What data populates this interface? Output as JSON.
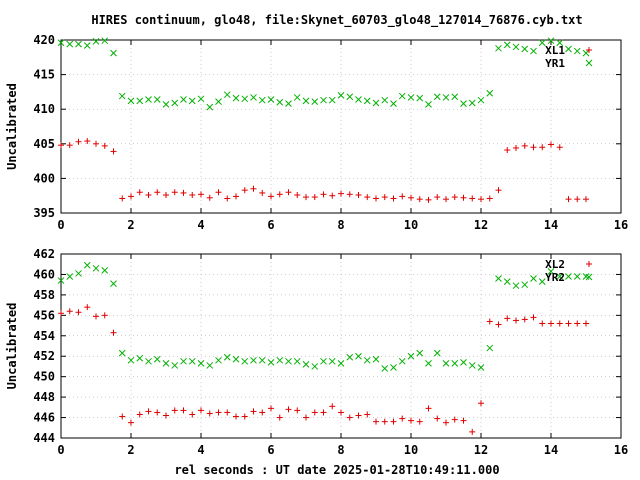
{
  "title": "HIRES continuum, glo48, file:Skynet_60703_glo48_127014_76876.cyb.txt",
  "xlabel": "rel seconds : UT date 2025-01-28T10:49:11.000",
  "colors": {
    "red": "#e00000",
    "green": "#00b000",
    "axis": "#000000",
    "grid": "#a0a0a0"
  },
  "chart_data": [
    {
      "type": "scatter",
      "ylabel": "Uncalibrated",
      "xlim": [
        0,
        16
      ],
      "ylim": [
        395,
        420
      ],
      "xticks": [
        0,
        2,
        4,
        6,
        8,
        10,
        12,
        14,
        16
      ],
      "yticks": [
        395,
        400,
        405,
        410,
        415,
        420
      ],
      "grid": true,
      "legend_position": "top-right",
      "series": [
        {
          "name": "XL1",
          "marker": "plus",
          "color": "#e00000",
          "x": [
            0.0,
            0.25,
            0.5,
            0.75,
            1.0,
            1.25,
            1.5,
            1.75,
            2.0,
            2.25,
            2.5,
            2.75,
            3.0,
            3.25,
            3.5,
            3.75,
            4.0,
            4.25,
            4.5,
            4.75,
            5.0,
            5.25,
            5.5,
            5.75,
            6.0,
            6.25,
            6.5,
            6.75,
            7.0,
            7.25,
            7.5,
            7.75,
            8.0,
            8.25,
            8.5,
            8.75,
            9.0,
            9.25,
            9.5,
            9.75,
            10.0,
            10.25,
            10.5,
            10.75,
            11.0,
            11.25,
            11.5,
            11.75,
            12.0,
            12.25,
            12.5,
            12.75,
            13.0,
            13.25,
            13.5,
            13.75,
            14.0,
            14.25,
            14.5,
            14.75,
            15.0
          ],
          "y": [
            404.8,
            404.8,
            405.3,
            405.4,
            405.0,
            404.7,
            403.9,
            397.1,
            397.4,
            398.0,
            397.6,
            398.0,
            397.6,
            398.0,
            397.9,
            397.6,
            397.7,
            397.2,
            398.0,
            397.1,
            397.4,
            398.3,
            398.5,
            397.9,
            397.4,
            397.7,
            398.0,
            397.6,
            397.3,
            397.3,
            397.7,
            397.5,
            397.8,
            397.7,
            397.6,
            397.3,
            397.1,
            397.3,
            397.1,
            397.4,
            397.2,
            397.0,
            396.9,
            397.3,
            397.0,
            397.3,
            397.2,
            397.1,
            397.0,
            397.1,
            398.3,
            404.1,
            404.4,
            404.7,
            404.5,
            404.5,
            404.9,
            404.5,
            397.0,
            397.0,
            397.0
          ]
        },
        {
          "name": "YR1",
          "marker": "cross",
          "color": "#00b000",
          "x": [
            0.0,
            0.25,
            0.5,
            0.75,
            1.0,
            1.25,
            1.5,
            1.75,
            2.0,
            2.25,
            2.5,
            2.75,
            3.0,
            3.25,
            3.5,
            3.75,
            4.0,
            4.25,
            4.5,
            4.75,
            5.0,
            5.25,
            5.5,
            5.75,
            6.0,
            6.25,
            6.5,
            6.75,
            7.0,
            7.25,
            7.5,
            7.75,
            8.0,
            8.25,
            8.5,
            8.75,
            9.0,
            9.25,
            9.5,
            9.75,
            10.0,
            10.25,
            10.5,
            10.75,
            11.0,
            11.25,
            11.5,
            11.75,
            12.0,
            12.25,
            12.5,
            12.75,
            13.0,
            13.25,
            13.5,
            13.75,
            14.0,
            14.25,
            14.5,
            14.75,
            15.0
          ],
          "y": [
            419.6,
            419.4,
            419.4,
            419.2,
            419.8,
            419.9,
            418.1,
            411.9,
            411.2,
            411.2,
            411.4,
            411.4,
            410.7,
            410.9,
            411.4,
            411.2,
            411.5,
            410.3,
            411.1,
            412.1,
            411.6,
            411.5,
            411.7,
            411.3,
            411.4,
            411.0,
            410.8,
            411.7,
            411.2,
            411.1,
            411.3,
            411.3,
            412.0,
            411.8,
            411.4,
            411.2,
            410.9,
            411.3,
            410.8,
            411.9,
            411.7,
            411.6,
            410.7,
            411.8,
            411.7,
            411.8,
            410.8,
            410.9,
            411.3,
            412.3,
            418.8,
            419.3,
            419.0,
            418.7,
            418.4,
            419.6,
            419.9,
            419.6,
            418.7,
            418.4,
            418.1
          ]
        }
      ]
    },
    {
      "type": "scatter",
      "ylabel": "Uncalibrated",
      "xlim": [
        0,
        16
      ],
      "ylim": [
        444,
        462
      ],
      "xticks": [
        0,
        2,
        4,
        6,
        8,
        10,
        12,
        14,
        16
      ],
      "yticks": [
        444,
        446,
        448,
        450,
        452,
        454,
        456,
        458,
        460,
        462
      ],
      "grid": true,
      "legend_position": "top-right",
      "series": [
        {
          "name": "XL2",
          "marker": "plus",
          "color": "#e00000",
          "x": [
            0.0,
            0.25,
            0.5,
            0.75,
            1.0,
            1.25,
            1.5,
            1.75,
            2.0,
            2.25,
            2.5,
            2.75,
            3.0,
            3.25,
            3.5,
            3.75,
            4.0,
            4.25,
            4.5,
            4.75,
            5.0,
            5.25,
            5.5,
            5.75,
            6.0,
            6.25,
            6.5,
            6.75,
            7.0,
            7.25,
            7.5,
            7.75,
            8.0,
            8.25,
            8.5,
            8.75,
            9.0,
            9.25,
            9.5,
            9.75,
            10.0,
            10.25,
            10.5,
            10.75,
            11.0,
            11.25,
            11.5,
            11.75,
            12.0,
            12.25,
            12.5,
            12.75,
            13.0,
            13.25,
            13.5,
            13.75,
            14.0,
            14.25,
            14.5,
            14.75,
            15.0
          ],
          "y": [
            456.2,
            456.4,
            456.3,
            456.8,
            455.9,
            456.0,
            454.3,
            446.1,
            445.5,
            446.3,
            446.6,
            446.5,
            446.2,
            446.7,
            446.7,
            446.3,
            446.7,
            446.4,
            446.5,
            446.5,
            446.1,
            446.1,
            446.6,
            446.5,
            446.9,
            446.0,
            446.8,
            446.7,
            446.0,
            446.5,
            446.5,
            447.1,
            446.5,
            446.0,
            446.2,
            446.3,
            445.6,
            445.6,
            445.6,
            445.9,
            445.7,
            445.6,
            446.9,
            445.9,
            445.5,
            445.8,
            445.7,
            444.6,
            447.4,
            455.4,
            455.1,
            455.7,
            455.5,
            455.6,
            455.8,
            455.2,
            455.2,
            455.2,
            455.2,
            455.2,
            455.2
          ]
        },
        {
          "name": "YR2",
          "marker": "cross",
          "color": "#00b000",
          "x": [
            0.0,
            0.25,
            0.5,
            0.75,
            1.0,
            1.25,
            1.5,
            1.75,
            2.0,
            2.25,
            2.5,
            2.75,
            3.0,
            3.25,
            3.5,
            3.75,
            4.0,
            4.25,
            4.5,
            4.75,
            5.0,
            5.25,
            5.5,
            5.75,
            6.0,
            6.25,
            6.5,
            6.75,
            7.0,
            7.25,
            7.5,
            7.75,
            8.0,
            8.25,
            8.5,
            8.75,
            9.0,
            9.25,
            9.5,
            9.75,
            10.0,
            10.25,
            10.5,
            10.75,
            11.0,
            11.25,
            11.5,
            11.75,
            12.0,
            12.25,
            12.5,
            12.75,
            13.0,
            13.25,
            13.5,
            13.75,
            14.0,
            14.25,
            14.5,
            14.75,
            15.0
          ],
          "y": [
            459.4,
            459.8,
            460.1,
            460.9,
            460.6,
            460.4,
            459.1,
            452.3,
            451.6,
            451.8,
            451.5,
            451.7,
            451.3,
            451.1,
            451.5,
            451.5,
            451.3,
            451.1,
            451.6,
            451.9,
            451.7,
            451.5,
            451.6,
            451.6,
            451.4,
            451.6,
            451.5,
            451.5,
            451.2,
            451.0,
            451.5,
            451.5,
            451.3,
            451.9,
            452.0,
            451.6,
            451.7,
            450.8,
            450.9,
            451.5,
            452.0,
            452.3,
            451.3,
            452.3,
            451.3,
            451.3,
            451.4,
            451.1,
            450.9,
            452.8,
            459.6,
            459.3,
            458.9,
            459.0,
            459.6,
            459.3,
            460.3,
            459.8,
            459.8,
            459.8,
            459.8
          ]
        }
      ]
    }
  ]
}
